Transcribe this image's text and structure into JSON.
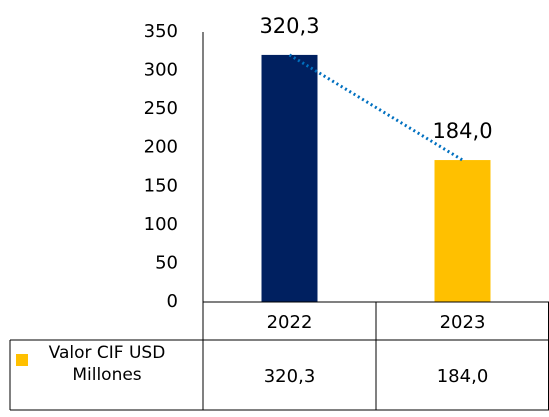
{
  "chart_data": {
    "type": "bar",
    "categories": [
      "2022",
      "2023"
    ],
    "series": [
      {
        "name": "Valor CIF USD Millones",
        "color": "#ffc000",
        "values": [
          320.3,
          184.0
        ],
        "value_labels": [
          "320,3",
          "184,0"
        ]
      }
    ],
    "bar_colors": [
      "#002060",
      "#ffc000"
    ],
    "trendline_color": "#0070c0",
    "ylim": [
      0,
      350
    ],
    "yticks": [
      0,
      50,
      100,
      150,
      200,
      250,
      300,
      350
    ],
    "grid": false,
    "data_table": true
  }
}
